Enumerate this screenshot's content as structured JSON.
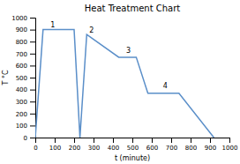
{
  "chart_data": {
    "type": "line",
    "title": "Heat Treatment Chart",
    "xlabel": "t (minute)",
    "ylabel": "T °C",
    "x": [
      0,
      40,
      200,
      230,
      265,
      430,
      520,
      580,
      740,
      920
    ],
    "values": [
      0,
      900,
      900,
      0,
      860,
      670,
      670,
      370,
      370,
      0
    ],
    "color": "#5b8fc9",
    "xlim": [
      0,
      1000
    ],
    "ylim": [
      0,
      1000
    ],
    "xticks": [
      0,
      100,
      200,
      300,
      400,
      500,
      600,
      700,
      800,
      900,
      1000
    ],
    "yticks": [
      0,
      100,
      200,
      300,
      400,
      500,
      600,
      700,
      800,
      900,
      1000
    ],
    "annotations": [
      {
        "text": "1",
        "x": 90,
        "y": 915
      },
      {
        "text": "2",
        "x": 290,
        "y": 870
      },
      {
        "text": "3",
        "x": 480,
        "y": 700
      },
      {
        "text": "4",
        "x": 670,
        "y": 405
      }
    ]
  }
}
